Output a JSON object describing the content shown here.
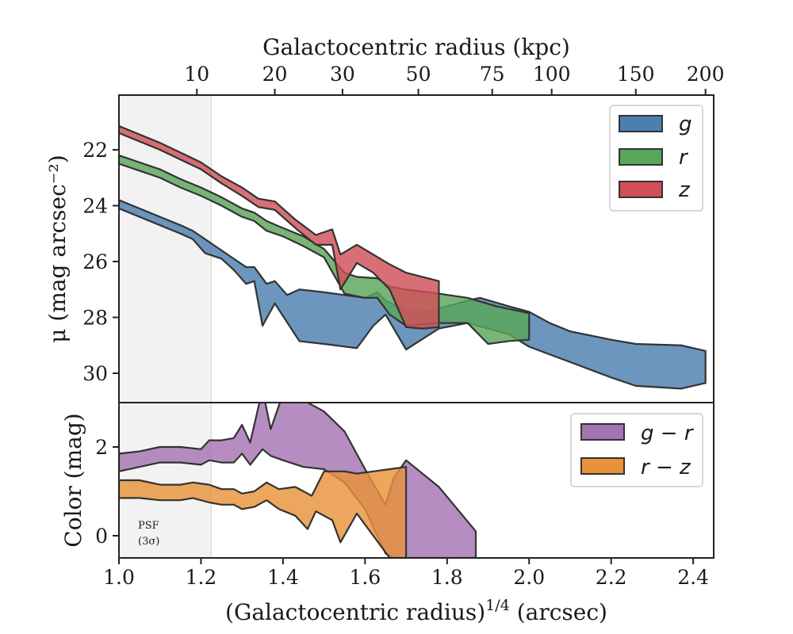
{
  "chart_data": [
    {
      "type": "area",
      "panel": "surface-brightness",
      "xlabel": "(Galactocentric radius)$^{1/4}$ (arcsec)",
      "ylabel": "μ (mag arcsec⁻²)",
      "top_xlabel": "Galactocentric radius (kpc)",
      "xlim": [
        1.0,
        2.45
      ],
      "ylim": [
        31.0,
        20.0
      ],
      "y_inverted": true,
      "x_ticks": [
        "1.0",
        "1.2",
        "1.4",
        "1.6",
        "1.8",
        "2.0",
        "2.2",
        "2.4"
      ],
      "y_ticks": [
        "22",
        "24",
        "26",
        "28",
        "30"
      ],
      "top_ticks": [
        {
          "label": "10",
          "x": 1.19
        },
        {
          "label": "20",
          "x": 1.38
        },
        {
          "label": "30",
          "x": 1.545
        },
        {
          "label": "50",
          "x": 1.73
        },
        {
          "label": "75",
          "x": 1.91
        },
        {
          "label": "100",
          "x": 2.055
        },
        {
          "label": "150",
          "x": 2.26
        },
        {
          "label": "200",
          "x": 2.43
        }
      ],
      "shaded_region": {
        "label_line1": "PSF",
        "label_line2": "(3σ)",
        "x_range": [
          1.0,
          1.225
        ],
        "color": "#f2f2f2"
      },
      "legend": {
        "placement": "top-right"
      },
      "series": [
        {
          "name": "g",
          "color": "#4c7fb0",
          "upper": [
            [
              1.0,
              23.8
            ],
            [
              1.05,
              24.1
            ],
            [
              1.1,
              24.4
            ],
            [
              1.15,
              24.7
            ],
            [
              1.18,
              24.9
            ],
            [
              1.21,
              25.2
            ],
            [
              1.25,
              25.6
            ],
            [
              1.28,
              25.9
            ],
            [
              1.31,
              26.2
            ],
            [
              1.33,
              26.2
            ],
            [
              1.36,
              26.8
            ],
            [
              1.38,
              26.7
            ],
            [
              1.41,
              27.2
            ],
            [
              1.44,
              27.0
            ],
            [
              1.5,
              27.1
            ],
            [
              1.55,
              27.2
            ],
            [
              1.6,
              27.3
            ],
            [
              1.63,
              27.1
            ],
            [
              1.65,
              27.4
            ],
            [
              1.68,
              27.6
            ],
            [
              1.7,
              27.8
            ],
            [
              1.75,
              27.8
            ],
            [
              1.8,
              27.6
            ],
            [
              1.85,
              27.4
            ],
            [
              1.88,
              27.3
            ],
            [
              1.95,
              27.6
            ],
            [
              2.0,
              27.8
            ],
            [
              2.05,
              28.2
            ],
            [
              2.1,
              28.5
            ],
            [
              2.2,
              28.8
            ],
            [
              2.26,
              28.95
            ],
            [
              2.37,
              29.0
            ],
            [
              2.43,
              29.2
            ]
          ],
          "lower": [
            [
              1.0,
              24.1
            ],
            [
              1.05,
              24.4
            ],
            [
              1.1,
              24.7
            ],
            [
              1.15,
              25.0
            ],
            [
              1.18,
              25.2
            ],
            [
              1.21,
              25.7
            ],
            [
              1.25,
              25.9
            ],
            [
              1.28,
              26.3
            ],
            [
              1.31,
              26.8
            ],
            [
              1.33,
              26.7
            ],
            [
              1.35,
              28.3
            ],
            [
              1.38,
              27.5
            ],
            [
              1.44,
              28.85
            ],
            [
              1.5,
              28.95
            ],
            [
              1.58,
              29.1
            ],
            [
              1.62,
              28.3
            ],
            [
              1.65,
              27.9
            ],
            [
              1.7,
              29.15
            ],
            [
              1.78,
              28.4
            ],
            [
              1.85,
              28.2
            ],
            [
              1.95,
              28.6
            ],
            [
              2.0,
              29.05
            ],
            [
              2.1,
              29.6
            ],
            [
              2.2,
              30.15
            ],
            [
              2.26,
              30.45
            ],
            [
              2.37,
              30.55
            ],
            [
              2.43,
              30.35
            ]
          ]
        },
        {
          "name": "r",
          "color": "#5aa65a",
          "upper": [
            [
              1.0,
              22.2
            ],
            [
              1.05,
              22.45
            ],
            [
              1.1,
              22.7
            ],
            [
              1.15,
              23.05
            ],
            [
              1.2,
              23.35
            ],
            [
              1.25,
              23.7
            ],
            [
              1.3,
              24.1
            ],
            [
              1.33,
              24.25
            ],
            [
              1.36,
              24.55
            ],
            [
              1.4,
              24.8
            ],
            [
              1.45,
              25.1
            ],
            [
              1.5,
              25.55
            ],
            [
              1.55,
              26.4
            ],
            [
              1.58,
              26.55
            ],
            [
              1.63,
              26.6
            ],
            [
              1.66,
              26.9
            ],
            [
              1.7,
              27.0
            ],
            [
              1.78,
              27.15
            ],
            [
              1.85,
              27.3
            ],
            [
              1.92,
              27.6
            ],
            [
              2.0,
              27.85
            ]
          ],
          "lower": [
            [
              1.0,
              22.5
            ],
            [
              1.05,
              22.75
            ],
            [
              1.1,
              23.0
            ],
            [
              1.15,
              23.35
            ],
            [
              1.2,
              23.65
            ],
            [
              1.25,
              24.0
            ],
            [
              1.3,
              24.4
            ],
            [
              1.33,
              24.55
            ],
            [
              1.36,
              24.9
            ],
            [
              1.4,
              25.1
            ],
            [
              1.45,
              25.45
            ],
            [
              1.5,
              25.85
            ],
            [
              1.55,
              27.15
            ],
            [
              1.6,
              27.3
            ],
            [
              1.63,
              27.3
            ],
            [
              1.66,
              27.9
            ],
            [
              1.7,
              28.3
            ],
            [
              1.78,
              28.2
            ],
            [
              1.85,
              28.2
            ],
            [
              1.9,
              28.95
            ],
            [
              1.95,
              28.85
            ],
            [
              2.0,
              28.8
            ]
          ]
        },
        {
          "name": "z",
          "color": "#d14f58",
          "upper": [
            [
              1.0,
              21.15
            ],
            [
              1.05,
              21.45
            ],
            [
              1.1,
              21.75
            ],
            [
              1.15,
              22.1
            ],
            [
              1.2,
              22.45
            ],
            [
              1.25,
              22.95
            ],
            [
              1.3,
              23.35
            ],
            [
              1.34,
              23.75
            ],
            [
              1.38,
              23.85
            ],
            [
              1.43,
              24.5
            ],
            [
              1.48,
              25.05
            ],
            [
              1.52,
              24.85
            ],
            [
              1.54,
              25.75
            ],
            [
              1.58,
              25.4
            ],
            [
              1.62,
              25.75
            ],
            [
              1.66,
              26.1
            ],
            [
              1.7,
              26.4
            ],
            [
              1.74,
              26.55
            ],
            [
              1.78,
              26.7
            ]
          ],
          "lower": [
            [
              1.0,
              21.4
            ],
            [
              1.05,
              21.7
            ],
            [
              1.1,
              22.0
            ],
            [
              1.15,
              22.35
            ],
            [
              1.2,
              22.7
            ],
            [
              1.25,
              23.2
            ],
            [
              1.3,
              23.65
            ],
            [
              1.34,
              24.05
            ],
            [
              1.38,
              24.15
            ],
            [
              1.43,
              24.8
            ],
            [
              1.48,
              25.4
            ],
            [
              1.52,
              25.4
            ],
            [
              1.54,
              27.0
            ],
            [
              1.58,
              26.05
            ],
            [
              1.62,
              26.4
            ],
            [
              1.66,
              27.0
            ],
            [
              1.7,
              28.35
            ],
            [
              1.74,
              28.4
            ],
            [
              1.78,
              28.35
            ]
          ]
        }
      ]
    },
    {
      "type": "area",
      "panel": "color",
      "ylabel": "Color (mag)",
      "xlim": [
        1.0,
        2.45
      ],
      "ylim": [
        -0.5,
        3.0
      ],
      "y_ticks": [
        "0",
        "2"
      ],
      "legend": {
        "placement": "top-right"
      },
      "series": [
        {
          "name": "g − r",
          "color": "#a574b2",
          "upper": [
            [
              1.0,
              1.85
            ],
            [
              1.05,
              1.9
            ],
            [
              1.1,
              2.0
            ],
            [
              1.15,
              2.0
            ],
            [
              1.2,
              1.95
            ],
            [
              1.22,
              2.15
            ],
            [
              1.25,
              2.15
            ],
            [
              1.28,
              2.2
            ],
            [
              1.3,
              2.5
            ],
            [
              1.32,
              2.1
            ],
            [
              1.35,
              3.3
            ],
            [
              1.37,
              2.4
            ],
            [
              1.4,
              3.2
            ],
            [
              1.45,
              3.05
            ],
            [
              1.5,
              2.8
            ],
            [
              1.55,
              2.35
            ],
            [
              1.6,
              1.5
            ],
            [
              1.65,
              0.7
            ],
            [
              1.67,
              1.3
            ],
            [
              1.7,
              1.7
            ],
            [
              1.78,
              1.1
            ],
            [
              1.87,
              0.1
            ]
          ],
          "lower": [
            [
              1.0,
              1.45
            ],
            [
              1.05,
              1.55
            ],
            [
              1.1,
              1.65
            ],
            [
              1.15,
              1.65
            ],
            [
              1.2,
              1.6
            ],
            [
              1.22,
              1.7
            ],
            [
              1.25,
              1.65
            ],
            [
              1.28,
              1.65
            ],
            [
              1.3,
              1.85
            ],
            [
              1.32,
              1.6
            ],
            [
              1.35,
              1.95
            ],
            [
              1.37,
              1.8
            ],
            [
              1.4,
              1.7
            ],
            [
              1.45,
              1.55
            ],
            [
              1.5,
              1.5
            ],
            [
              1.55,
              1.2
            ],
            [
              1.6,
              0.6
            ],
            [
              1.65,
              -0.4
            ],
            [
              1.67,
              -0.5
            ],
            [
              1.7,
              -0.5
            ],
            [
              1.78,
              -0.5
            ],
            [
              1.87,
              -0.5
            ]
          ]
        },
        {
          "name": "r − z",
          "color": "#e8923a",
          "upper": [
            [
              1.0,
              1.25
            ],
            [
              1.05,
              1.25
            ],
            [
              1.1,
              1.15
            ],
            [
              1.15,
              1.15
            ],
            [
              1.18,
              1.2
            ],
            [
              1.22,
              1.15
            ],
            [
              1.25,
              1.05
            ],
            [
              1.28,
              1.05
            ],
            [
              1.3,
              0.95
            ],
            [
              1.33,
              1.0
            ],
            [
              1.36,
              1.2
            ],
            [
              1.39,
              1.05
            ],
            [
              1.43,
              1.1
            ],
            [
              1.47,
              0.9
            ],
            [
              1.5,
              1.45
            ],
            [
              1.55,
              1.45
            ],
            [
              1.58,
              1.4
            ],
            [
              1.62,
              1.45
            ],
            [
              1.66,
              1.5
            ],
            [
              1.7,
              1.55
            ]
          ],
          "lower": [
            [
              1.0,
              0.85
            ],
            [
              1.05,
              0.85
            ],
            [
              1.1,
              0.8
            ],
            [
              1.15,
              0.8
            ],
            [
              1.18,
              0.85
            ],
            [
              1.22,
              0.75
            ],
            [
              1.25,
              0.7
            ],
            [
              1.28,
              0.7
            ],
            [
              1.3,
              0.6
            ],
            [
              1.33,
              0.65
            ],
            [
              1.36,
              0.8
            ],
            [
              1.39,
              0.6
            ],
            [
              1.43,
              0.45
            ],
            [
              1.46,
              0.15
            ],
            [
              1.48,
              0.55
            ],
            [
              1.52,
              0.35
            ],
            [
              1.54,
              -0.15
            ],
            [
              1.58,
              0.5
            ],
            [
              1.62,
              0.0
            ],
            [
              1.66,
              -0.5
            ],
            [
              1.7,
              -0.5
            ]
          ]
        }
      ]
    }
  ]
}
